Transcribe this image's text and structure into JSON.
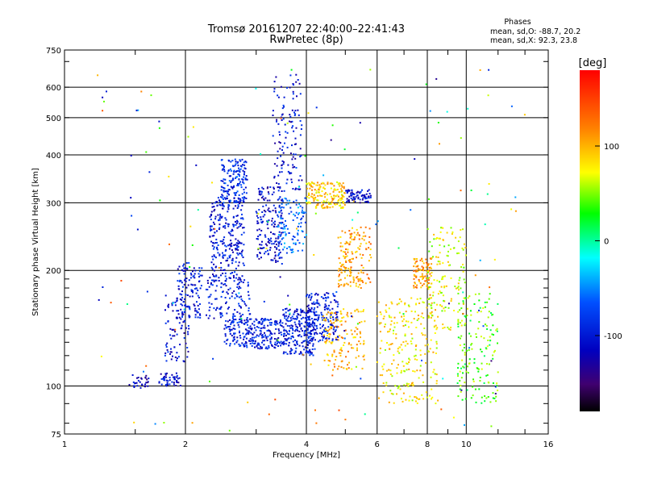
{
  "header": {
    "title_line1": "Tromsø 20161207 22:40:00–22:41:43",
    "title_line2": "RwPretec (8p)",
    "stats_title": "Phases",
    "stats_o": "mean, sd,O: -88.7, 20.2",
    "stats_x": "mean, sd,X:  92.3, 23.8"
  },
  "colorbar": {
    "label": "[deg]",
    "ticks": [
      "100",
      "0",
      "-100"
    ],
    "tick_values": [
      100,
      0,
      -100
    ],
    "range": [
      -180,
      180
    ]
  },
  "chart_data": {
    "type": "scatter",
    "xlabel": "Frequency [MHz]",
    "ylabel": "Stationary phase Virtual Height [km]",
    "xscale": "log",
    "yscale": "log",
    "xlim": [
      1,
      16
    ],
    "ylim": [
      75,
      750
    ],
    "xticks": [
      "1",
      "2",
      "4",
      "6",
      "8",
      "10",
      "16"
    ],
    "xtick_values": [
      1,
      2,
      4,
      6,
      8,
      10,
      16
    ],
    "yticks": [
      "750",
      "600",
      "500",
      "400",
      "300",
      "200",
      "100",
      "75"
    ],
    "ytick_values": [
      750,
      600,
      500,
      400,
      300,
      200,
      100,
      75
    ],
    "grid": true,
    "clusters": [
      {
        "f": [
          1.45,
          1.62
        ],
        "h": [
          98,
          108
        ],
        "ph": -115,
        "n": 30
      },
      {
        "f": [
          1.72,
          1.95
        ],
        "h": [
          100,
          108
        ],
        "ph": -110,
        "n": 45
      },
      {
        "f": [
          1.78,
          2.05
        ],
        "h": [
          115,
          175
        ],
        "ph": -105,
        "n": 90
      },
      {
        "f": [
          1.9,
          2.2
        ],
        "h": [
          150,
          210
        ],
        "ph": -100,
        "n": 110
      },
      {
        "f": [
          2.3,
          2.8
        ],
        "h": [
          190,
          310
        ],
        "ph": -100,
        "n": 260
      },
      {
        "f": [
          2.45,
          2.85
        ],
        "h": [
          300,
          390
        ],
        "ph": -85,
        "n": 160
      },
      {
        "f": [
          2.25,
          2.9
        ],
        "h": [
          150,
          190
        ],
        "ph": -100,
        "n": 120
      },
      {
        "f": [
          2.5,
          3.5
        ],
        "h": [
          125,
          150
        ],
        "ph": -95,
        "n": 260
      },
      {
        "f": [
          3.0,
          3.5
        ],
        "h": [
          210,
          330
        ],
        "ph": -110,
        "n": 170
      },
      {
        "f": [
          3.3,
          3.9
        ],
        "h": [
          320,
          650
        ],
        "ph": -105,
        "n": 130
      },
      {
        "f": [
          3.4,
          4.0
        ],
        "h": [
          220,
          310
        ],
        "ph": -60,
        "n": 110
      },
      {
        "f": [
          3.5,
          4.2
        ],
        "h": [
          120,
          160
        ],
        "ph": -100,
        "n": 220
      },
      {
        "f": [
          4.0,
          4.8
        ],
        "h": [
          130,
          175
        ],
        "ph": -95,
        "n": 200
      },
      {
        "f": [
          4.0,
          5.0
        ],
        "h": [
          290,
          340
        ],
        "ph": 90,
        "n": 170
      },
      {
        "f": [
          5.0,
          5.8
        ],
        "h": [
          300,
          325
        ],
        "ph": -110,
        "n": 70
      },
      {
        "f": [
          4.8,
          5.8
        ],
        "h": [
          180,
          260
        ],
        "ph": 110,
        "n": 160
      },
      {
        "f": [
          4.4,
          5.6
        ],
        "h": [
          110,
          160
        ],
        "ph": 100,
        "n": 140
      },
      {
        "f": [
          6.0,
          8.5
        ],
        "h": [
          90,
          170
        ],
        "ph": 80,
        "n": 240
      },
      {
        "f": [
          7.4,
          8.2
        ],
        "h": [
          180,
          215
        ],
        "ph": 110,
        "n": 90
      },
      {
        "f": [
          8.0,
          10.0
        ],
        "h": [
          140,
          260
        ],
        "ph": 70,
        "n": 140
      },
      {
        "f": [
          9.5,
          12.0
        ],
        "h": [
          90,
          175
        ],
        "ph": 40,
        "n": 160
      },
      {
        "f": [
          1.2,
          14.0
        ],
        "h": [
          76,
          700
        ],
        "ph": 0,
        "n": 160
      }
    ]
  }
}
